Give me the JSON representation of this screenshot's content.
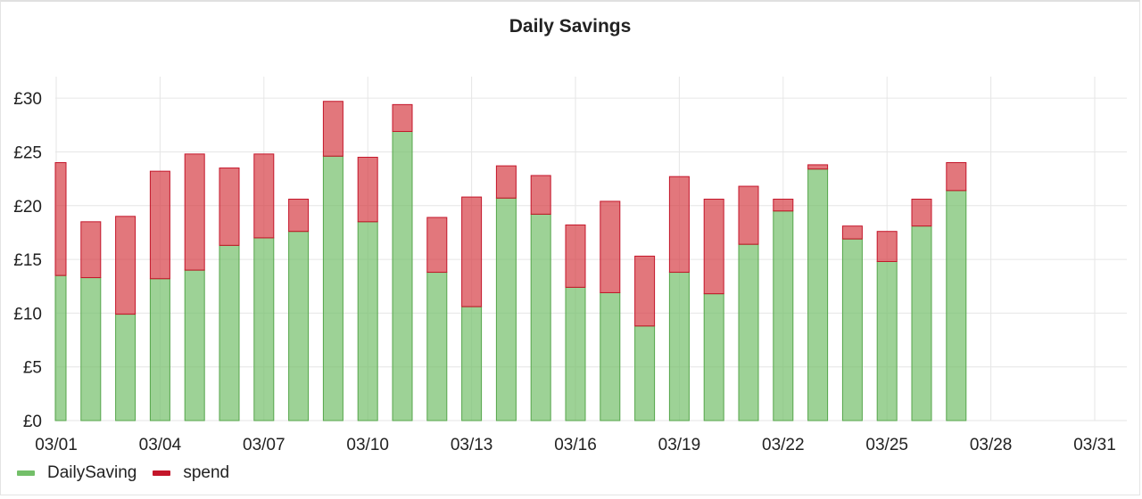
{
  "chart_data": {
    "type": "bar",
    "stacked": true,
    "title": "Daily Savings",
    "xlabel": "",
    "ylabel": "",
    "x": [
      "03/01",
      "03/02",
      "03/03",
      "03/04",
      "03/05",
      "03/06",
      "03/07",
      "03/08",
      "03/09",
      "03/10",
      "03/11",
      "03/12",
      "03/13",
      "03/14",
      "03/15",
      "03/16",
      "03/17",
      "03/18",
      "03/19",
      "03/20",
      "03/21",
      "03/22",
      "03/23",
      "03/24",
      "03/25",
      "03/26",
      "03/27"
    ],
    "x_ticks": [
      "03/01",
      "03/04",
      "03/07",
      "03/10",
      "03/13",
      "03/16",
      "03/19",
      "03/22",
      "03/25",
      "03/28",
      "03/31"
    ],
    "y_ticks": [
      "£0",
      "£5",
      "£10",
      "£15",
      "£20",
      "£25",
      "£30"
    ],
    "ylim": [
      0,
      32
    ],
    "grid": true,
    "legend_position": "bottom-left",
    "series": [
      {
        "name": "DailySaving",
        "color": "#73bf69",
        "values": [
          13.5,
          13.3,
          9.9,
          13.2,
          14.0,
          16.3,
          17.0,
          17.6,
          24.6,
          18.5,
          26.9,
          13.8,
          10.6,
          20.7,
          19.2,
          12.4,
          11.9,
          8.8,
          13.8,
          11.8,
          16.4,
          19.5,
          23.4,
          16.9,
          14.8,
          18.1,
          21.4
        ]
      },
      {
        "name": "spend",
        "color": "#c4162a",
        "values": [
          10.5,
          5.2,
          9.1,
          10.0,
          10.8,
          7.2,
          7.8,
          3.0,
          5.1,
          6.0,
          2.5,
          5.1,
          10.2,
          3.0,
          3.6,
          5.8,
          8.5,
          6.5,
          8.9,
          8.8,
          5.4,
          1.1,
          0.4,
          1.2,
          2.8,
          2.5,
          2.6
        ]
      }
    ]
  }
}
